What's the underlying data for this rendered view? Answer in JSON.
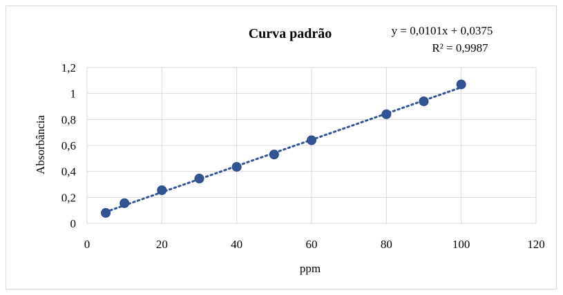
{
  "chart_data": {
    "type": "scatter",
    "title": "Curva padrão",
    "xlabel": "ppm",
    "ylabel": "Absorbância",
    "xlim": [
      0,
      120
    ],
    "ylim": [
      0,
      1.2
    ],
    "x_ticks": [
      "0",
      "20",
      "40",
      "60",
      "80",
      "100",
      "120"
    ],
    "y_ticks": [
      "0",
      "0,2",
      "0,4",
      "0,6",
      "0,8",
      "1",
      "1,2"
    ],
    "grid": true,
    "marker_color": "#2f5597",
    "trendline_color": "#2f5597",
    "points": [
      {
        "x": 5,
        "y": 0.08
      },
      {
        "x": 10,
        "y": 0.155
      },
      {
        "x": 20,
        "y": 0.255
      },
      {
        "x": 30,
        "y": 0.345
      },
      {
        "x": 40,
        "y": 0.435
      },
      {
        "x": 50,
        "y": 0.53
      },
      {
        "x": 60,
        "y": 0.64
      },
      {
        "x": 80,
        "y": 0.84
      },
      {
        "x": 90,
        "y": 0.94
      },
      {
        "x": 100,
        "y": 1.07
      }
    ],
    "trendline": {
      "type": "linear",
      "slope": 0.0101,
      "intercept": 0.0375,
      "x_range": [
        5,
        100
      ],
      "equation": "y = 0,0101x + 0,0375",
      "r_squared": "R² = 0,9987"
    }
  }
}
